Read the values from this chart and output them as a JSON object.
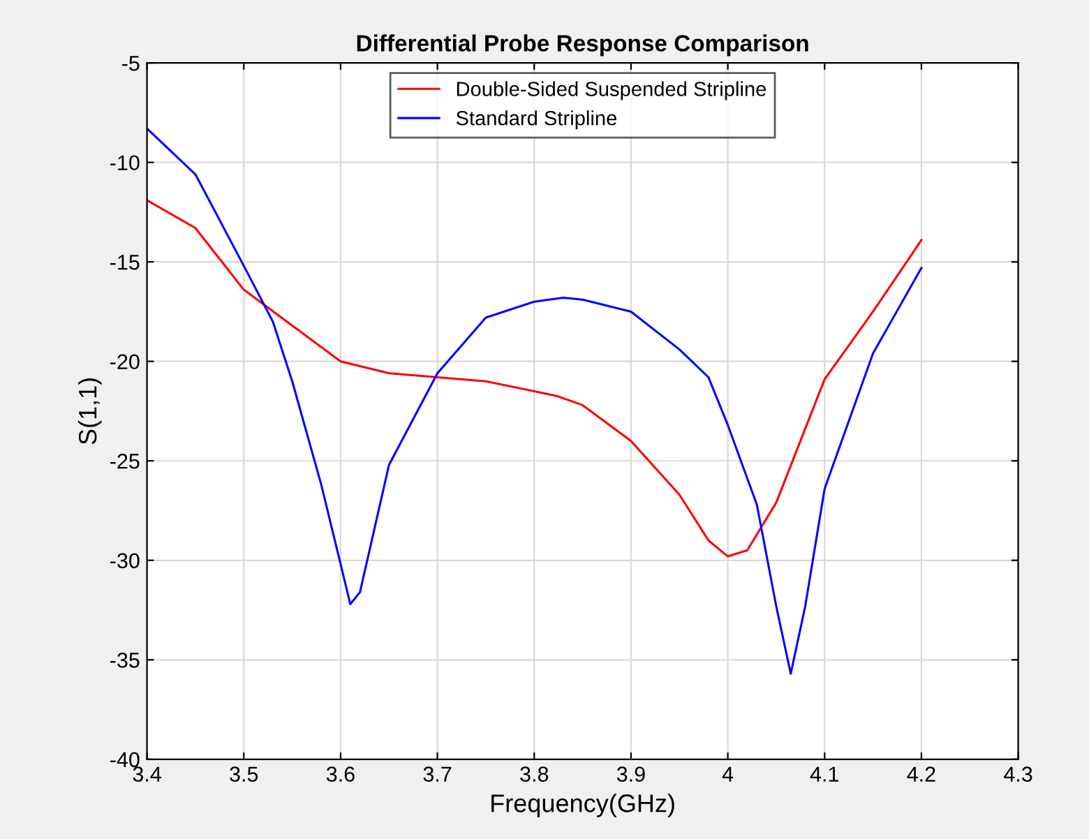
{
  "chart_data": {
    "type": "line",
    "title": "Differential Probe Response Comparison",
    "xlabel": "Frequency(GHz)",
    "ylabel": "S(1,1)",
    "xlim": [
      3.4,
      4.3
    ],
    "xticks": [
      3.4,
      3.5,
      3.6,
      3.7,
      3.8,
      3.9,
      4,
      4.1,
      4.2,
      4.3
    ],
    "ylim": [
      -40,
      -5
    ],
    "yticks": [
      -40,
      -35,
      -30,
      -25,
      -20,
      -15,
      -10,
      -5
    ],
    "grid": true,
    "legend": "top",
    "marker": "none",
    "line_style": "solid",
    "series": [
      {
        "name": "Double-Sided Suspended Stripline",
        "color": "#ff0000",
        "x": [
          3.4,
          3.45,
          3.5,
          3.55,
          3.6,
          3.65,
          3.7,
          3.75,
          3.8,
          3.824,
          3.85,
          3.9,
          3.95,
          3.98,
          4.0,
          4.02,
          4.05,
          4.1,
          4.15,
          4.2
        ],
        "values": [
          -11.9,
          -13.3,
          -16.4,
          -18.2,
          -20.0,
          -20.6,
          -20.8,
          -21.0,
          -21.5,
          -21.75,
          -22.2,
          -24.0,
          -26.7,
          -29.0,
          -29.8,
          -29.5,
          -27.1,
          -20.9,
          -17.5,
          -13.9
        ]
      },
      {
        "name": "Standard Stripline",
        "color": "#0000ff",
        "x": [
          3.4,
          3.45,
          3.5,
          3.53,
          3.55,
          3.58,
          3.6,
          3.61,
          3.62,
          3.65,
          3.7,
          3.75,
          3.8,
          3.83,
          3.85,
          3.9,
          3.95,
          3.98,
          4.0,
          4.03,
          4.05,
          4.065,
          4.08,
          4.1,
          4.15,
          4.2
        ],
        "values": [
          -8.3,
          -10.6,
          -15.2,
          -18.0,
          -21.0,
          -26.2,
          -30.2,
          -32.2,
          -31.6,
          -25.2,
          -20.6,
          -17.8,
          -17.0,
          -16.8,
          -16.9,
          -17.5,
          -19.4,
          -20.8,
          -23.2,
          -27.2,
          -32.3,
          -35.7,
          -32.3,
          -26.4,
          -19.6,
          -15.3
        ]
      }
    ]
  }
}
